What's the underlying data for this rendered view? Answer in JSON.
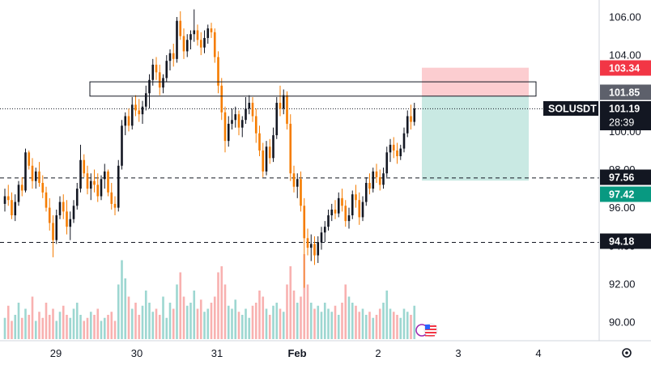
{
  "chart_data": {
    "type": "candlestick",
    "symbol": "SOLUSDT",
    "last_price": "101.19",
    "countdown": "28:39",
    "y_ticks": [
      "106.00",
      "104.00",
      "102.00",
      "100.00",
      "98.00",
      "96.00",
      "94.00",
      "92.00",
      "90.00"
    ],
    "ylim": [
      89.2,
      106.9
    ],
    "x_ticks": [
      {
        "label": "29",
        "bold": false
      },
      {
        "label": "30",
        "bold": false
      },
      {
        "label": "31",
        "bold": false
      },
      {
        "label": "Feb",
        "bold": true
      },
      {
        "label": "2",
        "bold": false
      },
      {
        "label": "3",
        "bold": false
      },
      {
        "label": "4",
        "bold": false
      }
    ],
    "price_tags": [
      {
        "label": "103.34",
        "value": 103.34,
        "bg": "#f23645",
        "fg": "#ffffff"
      },
      {
        "label": "101.85",
        "value": 101.85,
        "bg": "#5d606b",
        "fg": "#ffffff"
      },
      {
        "label": "97.56",
        "value": 97.56,
        "bg": "#131722",
        "fg": "#ffffff"
      },
      {
        "label": "97.42",
        "value": 97.42,
        "bg": "#089981",
        "fg": "#ffffff"
      },
      {
        "label": "94.18",
        "value": 94.18,
        "bg": "#131722",
        "fg": "#ffffff"
      }
    ],
    "horizontal_lines": [
      {
        "value": 97.56,
        "style": "dashed"
      },
      {
        "value": 94.18,
        "style": "dashed"
      },
      {
        "value": 101.19,
        "style": "dotted"
      }
    ],
    "zone": {
      "low": 101.85,
      "high": 102.6
    },
    "position": {
      "entry": 101.85,
      "stop": 103.34,
      "target": 97.42
    },
    "candles": [
      [
        96.2,
        97.0,
        95.8,
        96.6
      ],
      [
        96.6,
        97.2,
        96.1,
        96.4
      ],
      [
        96.4,
        96.8,
        95.4,
        95.6
      ],
      [
        95.6,
        96.7,
        95.3,
        96.3
      ],
      [
        96.3,
        97.4,
        96.1,
        97.2
      ],
      [
        97.2,
        97.6,
        96.6,
        96.9
      ],
      [
        96.9,
        99.1,
        96.8,
        98.9
      ],
      [
        98.9,
        99.0,
        98.0,
        98.2
      ],
      [
        98.2,
        98.6,
        97.0,
        97.4
      ],
      [
        97.4,
        98.1,
        97.0,
        97.9
      ],
      [
        97.9,
        98.4,
        97.1,
        97.3
      ],
      [
        97.3,
        97.7,
        96.5,
        96.8
      ],
      [
        96.8,
        97.1,
        95.8,
        96.0
      ],
      [
        96.0,
        96.5,
        94.8,
        95.2
      ],
      [
        95.2,
        95.6,
        93.4,
        94.3
      ],
      [
        94.3,
        95.9,
        94.1,
        95.6
      ],
      [
        95.6,
        96.6,
        95.4,
        96.3
      ],
      [
        96.3,
        96.7,
        95.4,
        95.8
      ],
      [
        95.8,
        96.4,
        94.6,
        95.0
      ],
      [
        95.0,
        95.8,
        94.3,
        95.4
      ],
      [
        95.4,
        96.4,
        95.2,
        96.1
      ],
      [
        96.1,
        97.3,
        95.9,
        97.0
      ],
      [
        97.0,
        99.3,
        96.8,
        98.5
      ],
      [
        98.5,
        98.8,
        97.6,
        97.8
      ],
      [
        97.8,
        98.2,
        96.7,
        97.0
      ],
      [
        97.0,
        97.8,
        96.4,
        97.4
      ],
      [
        97.4,
        98.0,
        96.8,
        97.2
      ],
      [
        97.2,
        97.8,
        96.3,
        96.6
      ],
      [
        96.6,
        97.7,
        96.4,
        97.5
      ],
      [
        97.5,
        98.3,
        97.0,
        97.9
      ],
      [
        97.9,
        98.0,
        96.6,
        96.8
      ],
      [
        96.8,
        97.3,
        95.9,
        96.2
      ],
      [
        96.2,
        96.6,
        95.6,
        96.0
      ],
      [
        96.0,
        98.5,
        95.8,
        98.2
      ],
      [
        98.2,
        100.6,
        98.0,
        100.3
      ],
      [
        100.3,
        101.0,
        99.8,
        100.8
      ],
      [
        100.8,
        101.2,
        100.0,
        100.3
      ],
      [
        100.3,
        101.8,
        100.1,
        101.4
      ],
      [
        101.4,
        101.9,
        100.8,
        101.1
      ],
      [
        101.1,
        101.7,
        100.5,
        100.9
      ],
      [
        100.9,
        101.6,
        100.4,
        101.3
      ],
      [
        101.3,
        102.4,
        101.1,
        102.0
      ],
      [
        102.0,
        103.0,
        101.2,
        102.7
      ],
      [
        102.7,
        103.8,
        102.4,
        103.5
      ],
      [
        103.5,
        103.9,
        102.7,
        103.1
      ],
      [
        103.1,
        103.5,
        101.9,
        102.3
      ],
      [
        102.3,
        103.0,
        102.0,
        102.8
      ],
      [
        102.8,
        104.0,
        102.6,
        103.7
      ],
      [
        103.7,
        104.3,
        103.2,
        104.1
      ],
      [
        104.1,
        104.6,
        103.4,
        103.8
      ],
      [
        103.8,
        106.0,
        103.6,
        105.8
      ],
      [
        105.8,
        106.3,
        104.8,
        105.0
      ],
      [
        105.0,
        105.4,
        103.8,
        104.2
      ],
      [
        104.2,
        105.1,
        103.9,
        104.8
      ],
      [
        104.8,
        105.3,
        104.3,
        105.1
      ],
      [
        105.1,
        106.4,
        104.7,
        105.3
      ],
      [
        105.3,
        105.6,
        104.5,
        104.8
      ],
      [
        104.8,
        105.2,
        104.0,
        104.4
      ],
      [
        104.4,
        105.3,
        104.1,
        104.9
      ],
      [
        104.9,
        105.6,
        104.6,
        105.4
      ],
      [
        105.4,
        105.7,
        104.9,
        105.2
      ],
      [
        105.2,
        105.4,
        103.6,
        103.9
      ],
      [
        103.9,
        104.2,
        102.0,
        102.4
      ],
      [
        102.4,
        102.8,
        100.6,
        101.0
      ],
      [
        101.0,
        101.3,
        98.9,
        99.5
      ],
      [
        99.5,
        100.8,
        99.2,
        100.4
      ],
      [
        100.4,
        101.2,
        100.1,
        100.6
      ],
      [
        100.6,
        101.3,
        100.2,
        100.9
      ],
      [
        100.9,
        101.1,
        99.8,
        100.2
      ],
      [
        100.2,
        100.8,
        99.7,
        100.6
      ],
      [
        100.6,
        101.8,
        100.4,
        101.2
      ],
      [
        101.2,
        101.9,
        100.9,
        101.5
      ],
      [
        101.5,
        101.8,
        100.5,
        100.8
      ],
      [
        100.8,
        101.2,
        99.4,
        99.9
      ],
      [
        99.9,
        100.3,
        98.7,
        99.0
      ],
      [
        99.0,
        99.4,
        97.6,
        97.9
      ],
      [
        97.9,
        99.5,
        97.7,
        99.2
      ],
      [
        99.2,
        99.6,
        98.3,
        98.6
      ],
      [
        98.6,
        100.2,
        98.4,
        99.8
      ],
      [
        99.8,
        101.8,
        99.6,
        101.5
      ],
      [
        101.5,
        102.4,
        100.8,
        101.2
      ],
      [
        101.2,
        102.2,
        100.9,
        101.9
      ],
      [
        101.9,
        102.1,
        100.1,
        100.4
      ],
      [
        100.4,
        100.9,
        97.4,
        97.8
      ],
      [
        97.8,
        98.2,
        96.8,
        97.1
      ],
      [
        97.1,
        97.8,
        96.5,
        97.5
      ],
      [
        97.5,
        97.9,
        95.8,
        96.1
      ],
      [
        96.1,
        96.5,
        91.8,
        94.4
      ],
      [
        94.4,
        94.9,
        93.5,
        93.9
      ],
      [
        93.9,
        94.6,
        93.2,
        94.1
      ],
      [
        94.1,
        94.5,
        93.0,
        93.5
      ],
      [
        93.5,
        94.5,
        93.1,
        94.2
      ],
      [
        94.2,
        95.0,
        93.8,
        94.7
      ],
      [
        94.7,
        95.3,
        94.2,
        95.0
      ],
      [
        95.0,
        95.9,
        94.8,
        95.6
      ],
      [
        95.6,
        96.2,
        95.3,
        95.9
      ],
      [
        95.9,
        96.4,
        95.4,
        95.7
      ],
      [
        95.7,
        96.8,
        95.5,
        96.5
      ],
      [
        96.5,
        97.0,
        95.8,
        96.1
      ],
      [
        96.1,
        96.4,
        95.0,
        95.3
      ],
      [
        95.3,
        96.0,
        94.9,
        95.6
      ],
      [
        95.6,
        96.9,
        95.4,
        96.7
      ],
      [
        96.7,
        97.2,
        96.0,
        96.4
      ],
      [
        96.4,
        96.8,
        95.1,
        95.5
      ],
      [
        95.5,
        96.6,
        95.3,
        96.3
      ],
      [
        96.3,
        97.6,
        96.1,
        97.3
      ],
      [
        97.3,
        97.8,
        96.7,
        97.0
      ],
      [
        97.0,
        98.1,
        96.8,
        97.9
      ],
      [
        97.9,
        98.3,
        97.3,
        97.6
      ],
      [
        97.6,
        98.0,
        96.9,
        97.2
      ],
      [
        97.2,
        98.1,
        97.0,
        97.8
      ],
      [
        97.8,
        99.2,
        97.6,
        98.9
      ],
      [
        98.9,
        99.6,
        98.4,
        99.3
      ],
      [
        99.3,
        99.7,
        98.6,
        99.0
      ],
      [
        99.0,
        99.4,
        98.3,
        98.7
      ],
      [
        98.7,
        99.3,
        98.5,
        99.1
      ],
      [
        99.1,
        100.2,
        98.9,
        99.9
      ],
      [
        99.9,
        101.1,
        99.7,
        100.8
      ],
      [
        100.8,
        101.4,
        100.1,
        100.5
      ],
      [
        100.5,
        101.5,
        100.3,
        101.2
      ]
    ],
    "volumes": [
      0.35,
      0.55,
      0.3,
      0.4,
      0.6,
      0.35,
      0.5,
      0.4,
      0.7,
      0.3,
      0.45,
      0.35,
      0.6,
      0.4,
      0.5,
      0.3,
      0.45,
      0.55,
      0.4,
      0.35,
      0.5,
      0.6,
      0.4,
      0.3,
      0.35,
      0.45,
      0.4,
      0.5,
      0.3,
      0.35,
      0.4,
      0.45,
      0.3,
      0.9,
      1.3,
      1.0,
      0.7,
      0.5,
      0.6,
      0.4,
      0.55,
      0.8,
      0.6,
      0.45,
      0.5,
      0.4,
      0.7,
      0.35,
      0.6,
      0.5,
      0.9,
      1.1,
      0.7,
      0.55,
      0.6,
      0.8,
      0.5,
      0.65,
      0.45,
      0.5,
      0.6,
      0.7,
      1.1,
      1.2,
      0.9,
      0.55,
      0.5,
      0.65,
      0.45,
      0.4,
      0.5,
      0.35,
      0.55,
      0.6,
      0.8,
      0.7,
      0.5,
      0.4,
      0.55,
      0.6,
      0.5,
      0.45,
      0.9,
      1.2,
      0.8,
      0.6,
      0.7,
      1.4,
      0.9,
      0.6,
      0.5,
      0.55,
      0.45,
      0.6,
      0.5,
      0.45,
      0.55,
      0.4,
      0.6,
      0.9,
      0.7,
      0.6,
      0.55,
      0.45,
      0.5,
      0.4,
      0.45,
      0.35,
      0.4,
      0.5,
      0.6,
      0.8,
      0.5,
      0.45,
      0.4,
      0.35,
      0.5,
      0.45,
      0.4,
      0.55
    ]
  },
  "ui": {
    "settings_icon": "gear-icon",
    "event_icon": "us-flag-event-icon"
  }
}
